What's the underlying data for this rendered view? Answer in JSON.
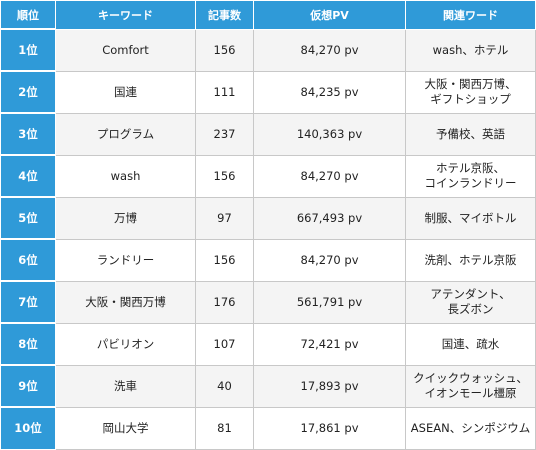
{
  "table": {
    "headers": [
      "順位",
      "キーワード",
      "記事数",
      "仮想PV",
      "関連ワード"
    ],
    "rows": [
      {
        "rank": "1位",
        "keyword": "Comfort",
        "articles": "156",
        "pv": "84,270 pv",
        "related": "wash、ホテル"
      },
      {
        "rank": "2位",
        "keyword": "国連",
        "articles": "111",
        "pv": "84,235 pv",
        "related": "大阪・関西万博、\nギフトショップ"
      },
      {
        "rank": "3位",
        "keyword": "プログラム",
        "articles": "237",
        "pv": "140,363 pv",
        "related": "予備校、英語"
      },
      {
        "rank": "4位",
        "keyword": "wash",
        "articles": "156",
        "pv": "84,270 pv",
        "related": "ホテル京阪、\nコインランドリー"
      },
      {
        "rank": "5位",
        "keyword": "万博",
        "articles": "97",
        "pv": "667,493 pv",
        "related": "制服、マイボトル"
      },
      {
        "rank": "6位",
        "keyword": "ランドリー",
        "articles": "156",
        "pv": "84,270 pv",
        "related": "洗剤、ホテル京阪"
      },
      {
        "rank": "7位",
        "keyword": "大阪・関西万博",
        "articles": "176",
        "pv": "561,791 pv",
        "related": "アテンダント、\n長ズボン"
      },
      {
        "rank": "8位",
        "keyword": "パビリオン",
        "articles": "107",
        "pv": "72,421 pv",
        "related": "国連、疏水"
      },
      {
        "rank": "9位",
        "keyword": "洗車",
        "articles": "40",
        "pv": "17,893 pv",
        "related": "クイックウォッシュ、\nイオンモール橿原"
      },
      {
        "rank": "10位",
        "keyword": "岡山大学",
        "articles": "81",
        "pv": "17,861 pv",
        "related": "ASEAN、シンポジウム"
      }
    ]
  },
  "colors": {
    "header_bg": "#2f9ad8",
    "header_text": "#ffffff",
    "row_alt_bg": "#f4f4f4",
    "border": "#c8c8c8"
  }
}
